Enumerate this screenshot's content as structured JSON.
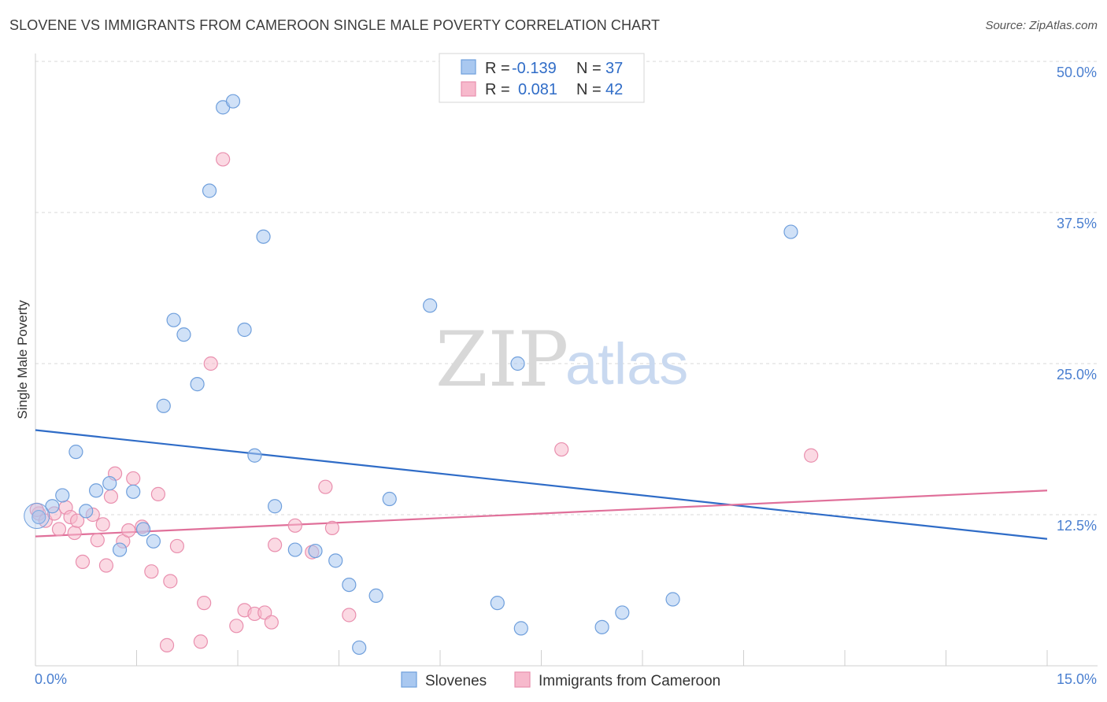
{
  "header": {
    "title": "SLOVENE VS IMMIGRANTS FROM CAMEROON SINGLE MALE POVERTY CORRELATION CHART",
    "source": "Source: ZipAtlas.com"
  },
  "watermark": {
    "zip": "ZIP",
    "atlas": "atlas"
  },
  "legend": {
    "rows": [
      {
        "r_label": "R =",
        "r_value": "-0.139",
        "n_label": "N =",
        "n_value": "37"
      },
      {
        "r_label": "R =",
        "r_value": "0.081",
        "n_label": "N =",
        "n_value": "42"
      }
    ]
  },
  "colors": {
    "blue_fill": "#a9c8f0",
    "blue_stroke": "#6f9fdc",
    "blue_line": "#2f6cc7",
    "pink_fill": "#f7b9cc",
    "pink_stroke": "#e98fae",
    "pink_line": "#e0709a",
    "grid": "#d9d9d9",
    "tick_label": "#4a7fd0"
  },
  "chart_data": {
    "type": "scatter",
    "title": "SLOVENE VS IMMIGRANTS FROM CAMEROON SINGLE MALE POVERTY CORRELATION CHART",
    "xlabel": "",
    "ylabel": "Single Male Poverty",
    "xlim": [
      0,
      15
    ],
    "ylim": [
      0,
      50
    ],
    "x_tick_labels": [
      "0.0%",
      "15.0%"
    ],
    "y_ticks": [
      12.5,
      25.0,
      37.5,
      50.0
    ],
    "y_tick_labels": [
      "12.5%",
      "25.0%",
      "37.5%",
      "50.0%"
    ],
    "grid": "horizontal dashed",
    "legend_position": "top-center",
    "series": [
      {
        "name": "Slovenes",
        "color": "#a9c8f0",
        "r": -0.139,
        "n": 37,
        "trend": [
          [
            0,
            19.5
          ],
          [
            15,
            10.5
          ]
        ],
        "points": [
          [
            0.05,
            12.3
          ],
          [
            0.25,
            13.2
          ],
          [
            0.4,
            14.1
          ],
          [
            0.6,
            17.7
          ],
          [
            0.75,
            12.8
          ],
          [
            0.9,
            14.5
          ],
          [
            1.1,
            15.1
          ],
          [
            1.25,
            9.6
          ],
          [
            1.45,
            14.4
          ],
          [
            1.6,
            11.3
          ],
          [
            1.75,
            10.3
          ],
          [
            1.9,
            21.5
          ],
          [
            2.05,
            28.6
          ],
          [
            2.2,
            27.4
          ],
          [
            2.4,
            23.3
          ],
          [
            2.58,
            39.3
          ],
          [
            2.78,
            46.2
          ],
          [
            2.93,
            46.7
          ],
          [
            3.1,
            27.8
          ],
          [
            3.25,
            17.4
          ],
          [
            3.38,
            35.5
          ],
          [
            3.55,
            13.2
          ],
          [
            3.85,
            9.6
          ],
          [
            4.15,
            9.5
          ],
          [
            4.45,
            8.7
          ],
          [
            4.65,
            6.7
          ],
          [
            4.8,
            1.5
          ],
          [
            5.05,
            5.8
          ],
          [
            5.25,
            13.8
          ],
          [
            5.85,
            29.8
          ],
          [
            6.85,
            5.2
          ],
          [
            7.15,
            25.0
          ],
          [
            7.2,
            3.1
          ],
          [
            8.4,
            3.2
          ],
          [
            8.7,
            4.4
          ],
          [
            9.45,
            5.5
          ],
          [
            11.2,
            35.9
          ]
        ]
      },
      {
        "name": "Immigrants from Cameroon",
        "color": "#f7b9cc",
        "r": 0.081,
        "n": 42,
        "trend": [
          [
            0,
            10.7
          ],
          [
            15,
            14.5
          ]
        ],
        "points": [
          [
            0.05,
            12.6
          ],
          [
            0.15,
            12.0
          ],
          [
            0.28,
            12.6
          ],
          [
            0.35,
            11.3
          ],
          [
            0.45,
            13.1
          ],
          [
            0.52,
            12.3
          ],
          [
            0.58,
            11.0
          ],
          [
            0.62,
            12.0
          ],
          [
            0.7,
            8.6
          ],
          [
            0.85,
            12.5
          ],
          [
            0.92,
            10.4
          ],
          [
            1.0,
            11.7
          ],
          [
            1.05,
            8.3
          ],
          [
            1.12,
            14.0
          ],
          [
            1.18,
            15.9
          ],
          [
            1.3,
            10.3
          ],
          [
            1.38,
            11.2
          ],
          [
            1.45,
            15.5
          ],
          [
            1.58,
            11.5
          ],
          [
            1.72,
            7.8
          ],
          [
            1.82,
            14.2
          ],
          [
            1.95,
            1.7
          ],
          [
            2.0,
            7.0
          ],
          [
            2.1,
            9.9
          ],
          [
            2.45,
            2.0
          ],
          [
            2.5,
            5.2
          ],
          [
            2.6,
            25.0
          ],
          [
            2.78,
            41.9
          ],
          [
            2.98,
            3.3
          ],
          [
            3.1,
            4.6
          ],
          [
            3.25,
            4.3
          ],
          [
            3.4,
            4.4
          ],
          [
            3.5,
            3.6
          ],
          [
            3.55,
            10.0
          ],
          [
            3.85,
            11.6
          ],
          [
            4.1,
            9.4
          ],
          [
            4.3,
            14.8
          ],
          [
            4.4,
            11.4
          ],
          [
            4.65,
            4.2
          ],
          [
            7.8,
            17.9
          ],
          [
            11.5,
            17.4
          ],
          [
            0.02,
            12.9
          ]
        ]
      }
    ]
  }
}
